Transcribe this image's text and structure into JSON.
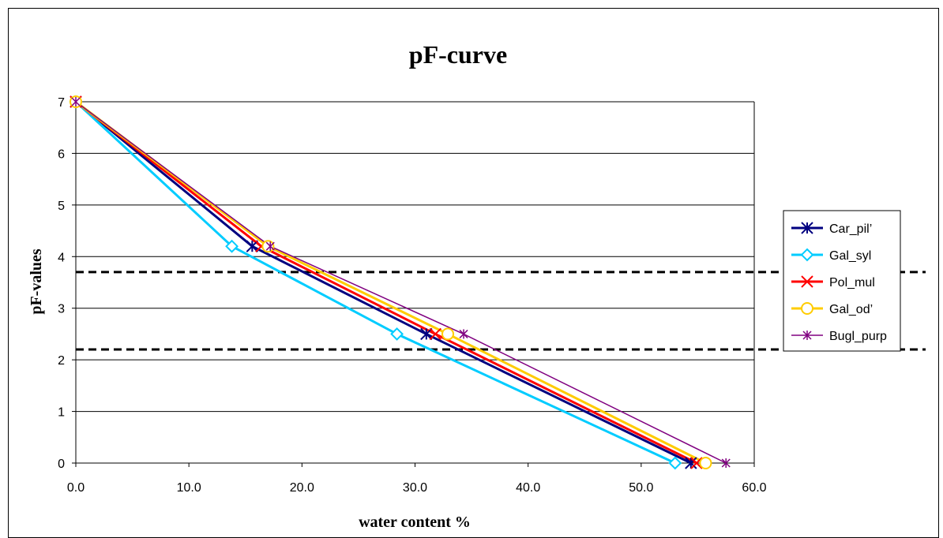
{
  "chart_data": {
    "type": "line",
    "title": "pF-curve",
    "xlabel": "water content %",
    "ylabel": "pF-values",
    "xlim": [
      0,
      60
    ],
    "ylim": [
      0,
      7
    ],
    "x_ticks": [
      "0.0",
      "10.0",
      "20.0",
      "30.0",
      "40.0",
      "50.0",
      "60.0"
    ],
    "y_ticks": [
      "0",
      "1",
      "2",
      "3",
      "4",
      "5",
      "6",
      "7"
    ],
    "grid": "horizontal major gridlines",
    "legend_position": "right",
    "reference_lines": [
      {
        "y": 3.7,
        "style": "dashed",
        "color": "#000000"
      },
      {
        "y": 2.2,
        "style": "dashed",
        "color": "#000000"
      }
    ],
    "series": [
      {
        "name": "Car_pil’",
        "color": "#000080",
        "marker": "asterisk-x",
        "x": [
          0,
          15.6,
          31.0,
          54.4
        ],
        "y": [
          7,
          4.2,
          2.5,
          0
        ]
      },
      {
        "name": "Gal_syl",
        "color": "#00CCFF",
        "marker": "diamond",
        "x": [
          0,
          13.8,
          28.4,
          53.0
        ],
        "y": [
          7,
          4.2,
          2.5,
          0
        ]
      },
      {
        "name": "Pol_mul",
        "color": "#FF0000",
        "marker": "x",
        "x": [
          0,
          16.4,
          31.8,
          54.9
        ],
        "y": [
          7,
          4.2,
          2.5,
          0
        ]
      },
      {
        "name": "Gal_od’",
        "color": "#FFCC00",
        "marker": "circle",
        "x": [
          0,
          17.0,
          32.9,
          55.7
        ],
        "y": [
          7,
          4.2,
          2.5,
          0
        ]
      },
      {
        "name": "Bugl_purp",
        "color": "#800080",
        "marker": "asterisk",
        "x": [
          0,
          17.2,
          34.3,
          57.5
        ],
        "y": [
          7,
          4.2,
          2.5,
          0
        ]
      }
    ]
  }
}
